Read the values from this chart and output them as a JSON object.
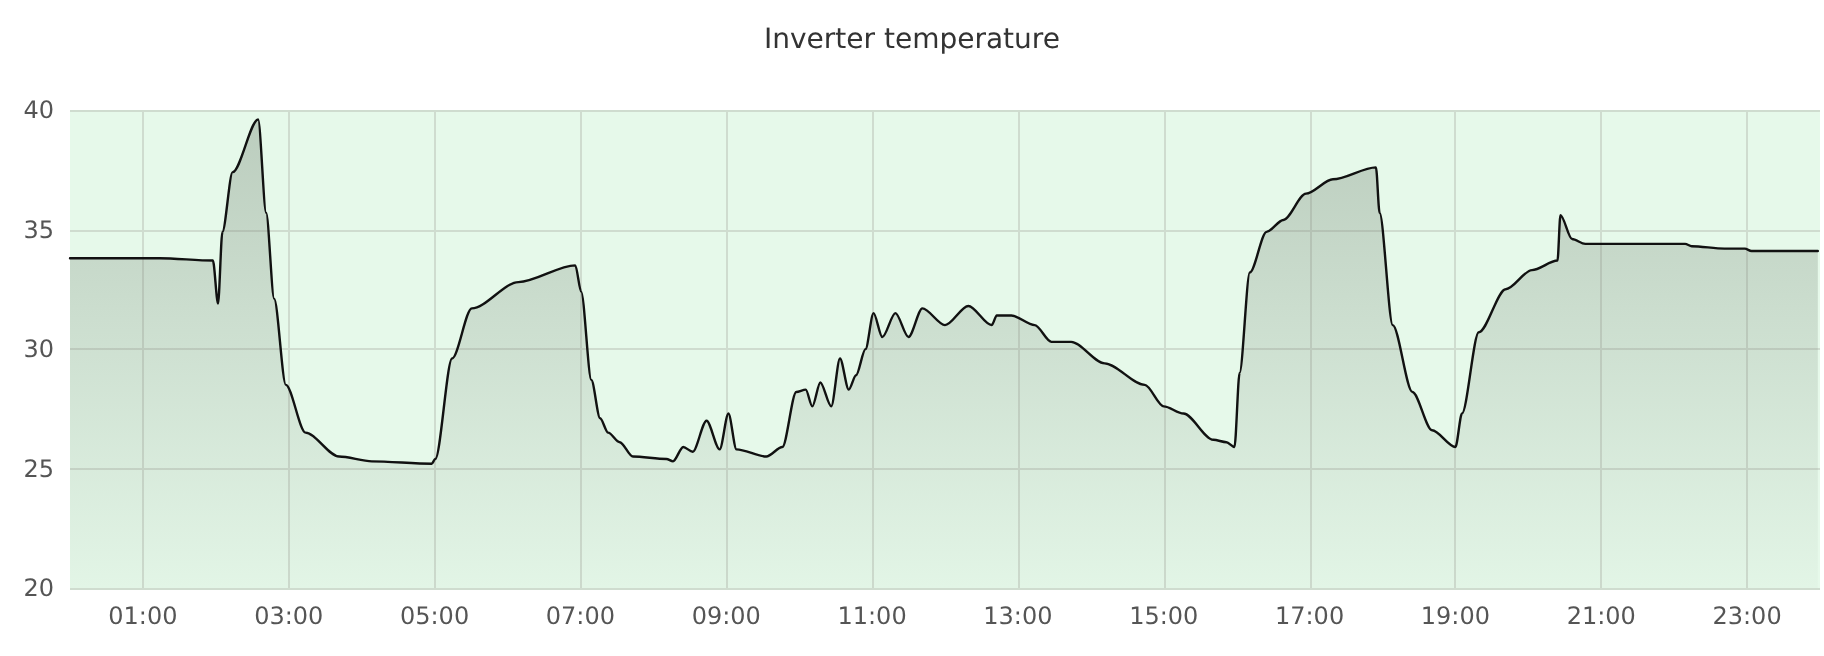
{
  "chart_data": {
    "type": "area",
    "title": "Inverter temperature",
    "x": [
      0,
      1.18,
      1.23,
      1.96,
      2.03,
      2.09,
      2.23,
      2.58,
      2.69,
      2.8,
      2.96,
      3.23,
      3.69,
      4.14,
      4.96,
      5.01,
      5.24,
      5.51,
      6.15,
      6.93,
      7.01,
      7.15,
      7.27,
      7.38,
      7.54,
      7.72,
      8.18,
      8.27,
      8.41,
      8.54,
      8.73,
      8.91,
      9.03,
      9.14,
      9.55,
      9.77,
      9.96,
      10.09,
      10.18,
      10.29,
      10.44,
      10.56,
      10.68,
      10.78,
      10.91,
      11.02,
      11.14,
      11.32,
      11.5,
      11.69,
      12.0,
      12.32,
      12.64,
      12.71,
      12.91,
      13.23,
      13.46,
      13.73,
      14.19,
      14.74,
      15.0,
      15.27,
      15.68,
      15.86,
      15.97,
      16.04,
      16.18,
      16.41,
      16.64,
      16.95,
      17.32,
      17.91,
      17.96,
      18.14,
      18.41,
      18.68,
      19.0,
      19.09,
      19.32,
      19.69,
      20.05,
      20.4,
      20.44,
      20.6,
      20.78,
      22.15,
      22.24,
      22.69,
      22.97,
      23.06,
      23.97
    ],
    "series": [
      {
        "color": "#111111",
        "values": [
          33.8,
          33.8,
          33.8,
          33.7,
          31.9,
          34.9,
          37.4,
          39.6,
          35.7,
          32.1,
          28.5,
          26.5,
          25.5,
          25.3,
          25.2,
          25.4,
          29.6,
          31.7,
          32.8,
          33.5,
          32.4,
          28.7,
          27.1,
          26.5,
          26.1,
          25.5,
          25.4,
          25.3,
          25.9,
          25.7,
          27.0,
          25.8,
          27.3,
          25.8,
          25.5,
          25.9,
          28.2,
          28.3,
          27.6,
          28.6,
          27.6,
          29.6,
          28.3,
          28.9,
          30.0,
          31.5,
          30.5,
          31.5,
          30.5,
          31.7,
          31.0,
          31.8,
          31.0,
          31.4,
          31.4,
          31.0,
          30.3,
          30.3,
          29.4,
          28.5,
          27.6,
          27.3,
          26.2,
          26.1,
          25.9,
          29.0,
          33.2,
          34.9,
          35.4,
          36.5,
          37.1,
          37.6,
          35.7,
          31.0,
          28.2,
          26.6,
          25.9,
          27.3,
          30.7,
          32.5,
          33.3,
          33.7,
          35.6,
          34.6,
          34.4,
          34.4,
          34.3,
          34.2,
          34.2,
          34.1,
          34.1
        ]
      }
    ],
    "xlim": [
      0,
      24
    ],
    "xticks": [
      {
        "value": 1,
        "label": "01:00"
      },
      {
        "value": 3,
        "label": "03:00"
      },
      {
        "value": 5,
        "label": "05:00"
      },
      {
        "value": 7,
        "label": "07:00"
      },
      {
        "value": 9,
        "label": "09:00"
      },
      {
        "value": 11,
        "label": "11:00"
      },
      {
        "value": 13,
        "label": "13:00"
      },
      {
        "value": 15,
        "label": "15:00"
      },
      {
        "value": 17,
        "label": "17:00"
      },
      {
        "value": 19,
        "label": "19:00"
      },
      {
        "value": 21,
        "label": "21:00"
      },
      {
        "value": 23,
        "label": "23:00"
      }
    ],
    "ylim": [
      20,
      40
    ],
    "yticks": [
      20,
      25,
      30,
      35,
      40
    ],
    "grid": true,
    "marker": "none",
    "line_style": "solid"
  }
}
